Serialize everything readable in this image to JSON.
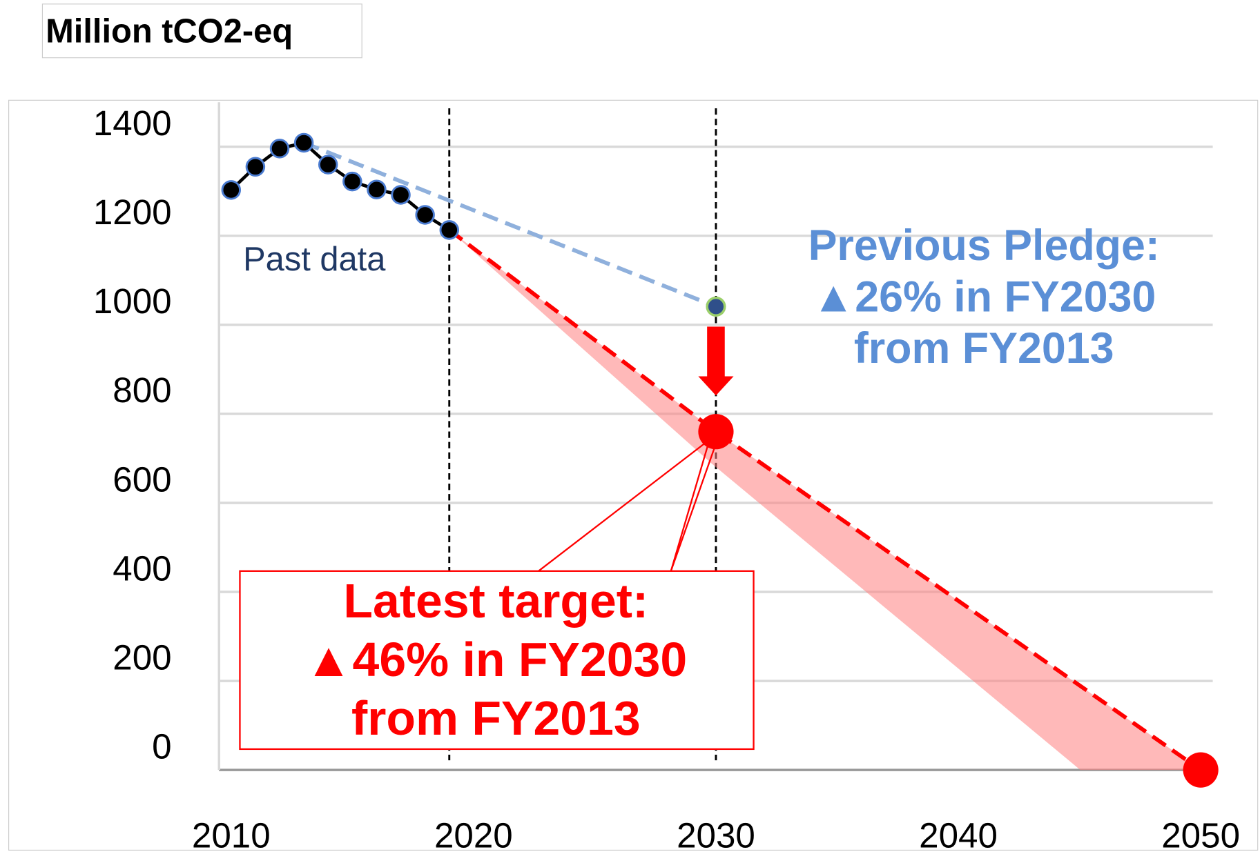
{
  "chart_data": {
    "type": "line",
    "y_label": "Million tCO2-eq",
    "xlim": [
      2009.5,
      2050
    ],
    "xticks": [
      2010,
      2020,
      2030,
      2040,
      2050
    ],
    "ylim": [
      0,
      1500
    ],
    "yticks": [
      0,
      200,
      400,
      600,
      800,
      1000,
      1200,
      1400
    ],
    "grid": true,
    "vlines": [
      2019,
      2030
    ],
    "series": [
      {
        "name": "Past data",
        "color": "#000000",
        "dashed": false,
        "x": [
          2010,
          2011,
          2012,
          2013,
          2014,
          2015,
          2016,
          2017,
          2018,
          2019
        ],
        "values": [
          1303,
          1355,
          1396,
          1409,
          1360,
          1322,
          1304,
          1292,
          1247,
          1213
        ]
      },
      {
        "color": "#8fb0dc",
        "dashed": true,
        "x": [
          2013,
          2030
        ],
        "values": [
          1409,
          1041
        ]
      },
      {
        "color": "#ff0000",
        "dashed": true,
        "x": [
          2019,
          2030,
          2050
        ],
        "values": [
          1213,
          760,
          0
        ]
      }
    ],
    "annotations": [
      {
        "color": "#5b8fd6",
        "lines": [
          "Previous Pledge:",
          "▲26% in FY2030",
          "from FY2013"
        ]
      },
      {
        "color": "#ff0000",
        "lines": [
          "Latest target:",
          "▲46% in FY2030",
          "from FY2013"
        ]
      }
    ]
  }
}
